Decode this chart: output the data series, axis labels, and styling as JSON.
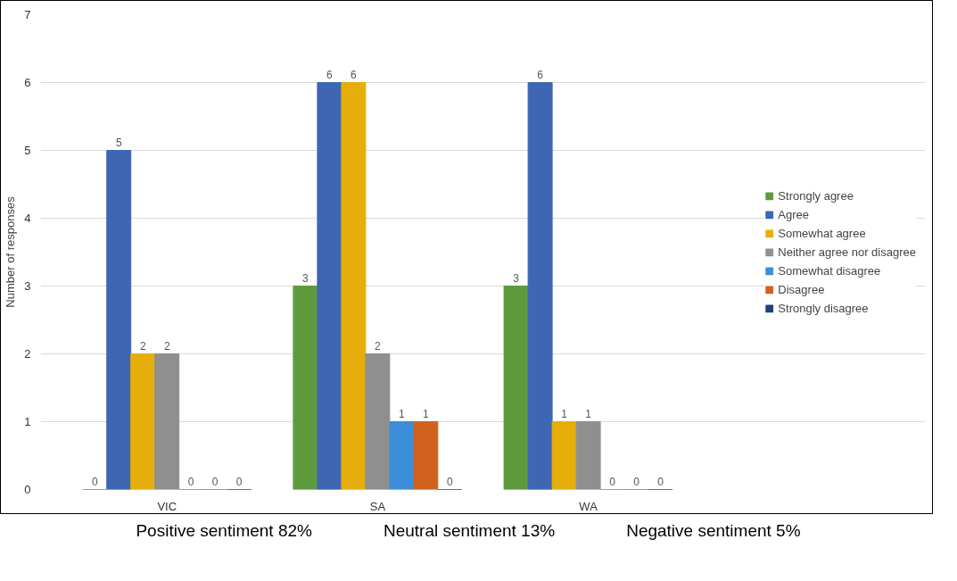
{
  "chart_data": {
    "type": "bar",
    "ylabel": "Number of responses",
    "categories": [
      "VIC",
      "SA",
      "WA"
    ],
    "ylim": [
      0,
      7
    ],
    "yticks": [
      0,
      1,
      2,
      3,
      4,
      5,
      6,
      7
    ],
    "grid": "y",
    "legend": "right",
    "data_labels": true,
    "series": [
      {
        "name": "Strongly agree",
        "color": "#5e9a3c",
        "values": [
          0,
          3,
          3
        ]
      },
      {
        "name": "Agree",
        "color": "#3e66b3",
        "values": [
          5,
          6,
          6
        ]
      },
      {
        "name": "Somewhat agree",
        "color": "#e5ae0a",
        "values": [
          2,
          6,
          1
        ]
      },
      {
        "name": "Neither agree nor disagree",
        "color": "#8f8f8f",
        "values": [
          2,
          2,
          1
        ]
      },
      {
        "name": "Somewhat disagree",
        "color": "#3a8fd8",
        "values": [
          0,
          1,
          0
        ]
      },
      {
        "name": "Disagree",
        "color": "#d0621e",
        "values": [
          0,
          1,
          0
        ]
      },
      {
        "name": "Strongly disagree",
        "color": "#22407a",
        "values": [
          0,
          0,
          0
        ]
      }
    ],
    "annotations": [
      "Positive sentiment 82%",
      "Neutral sentiment 13%",
      "Negative sentiment 5%"
    ]
  }
}
